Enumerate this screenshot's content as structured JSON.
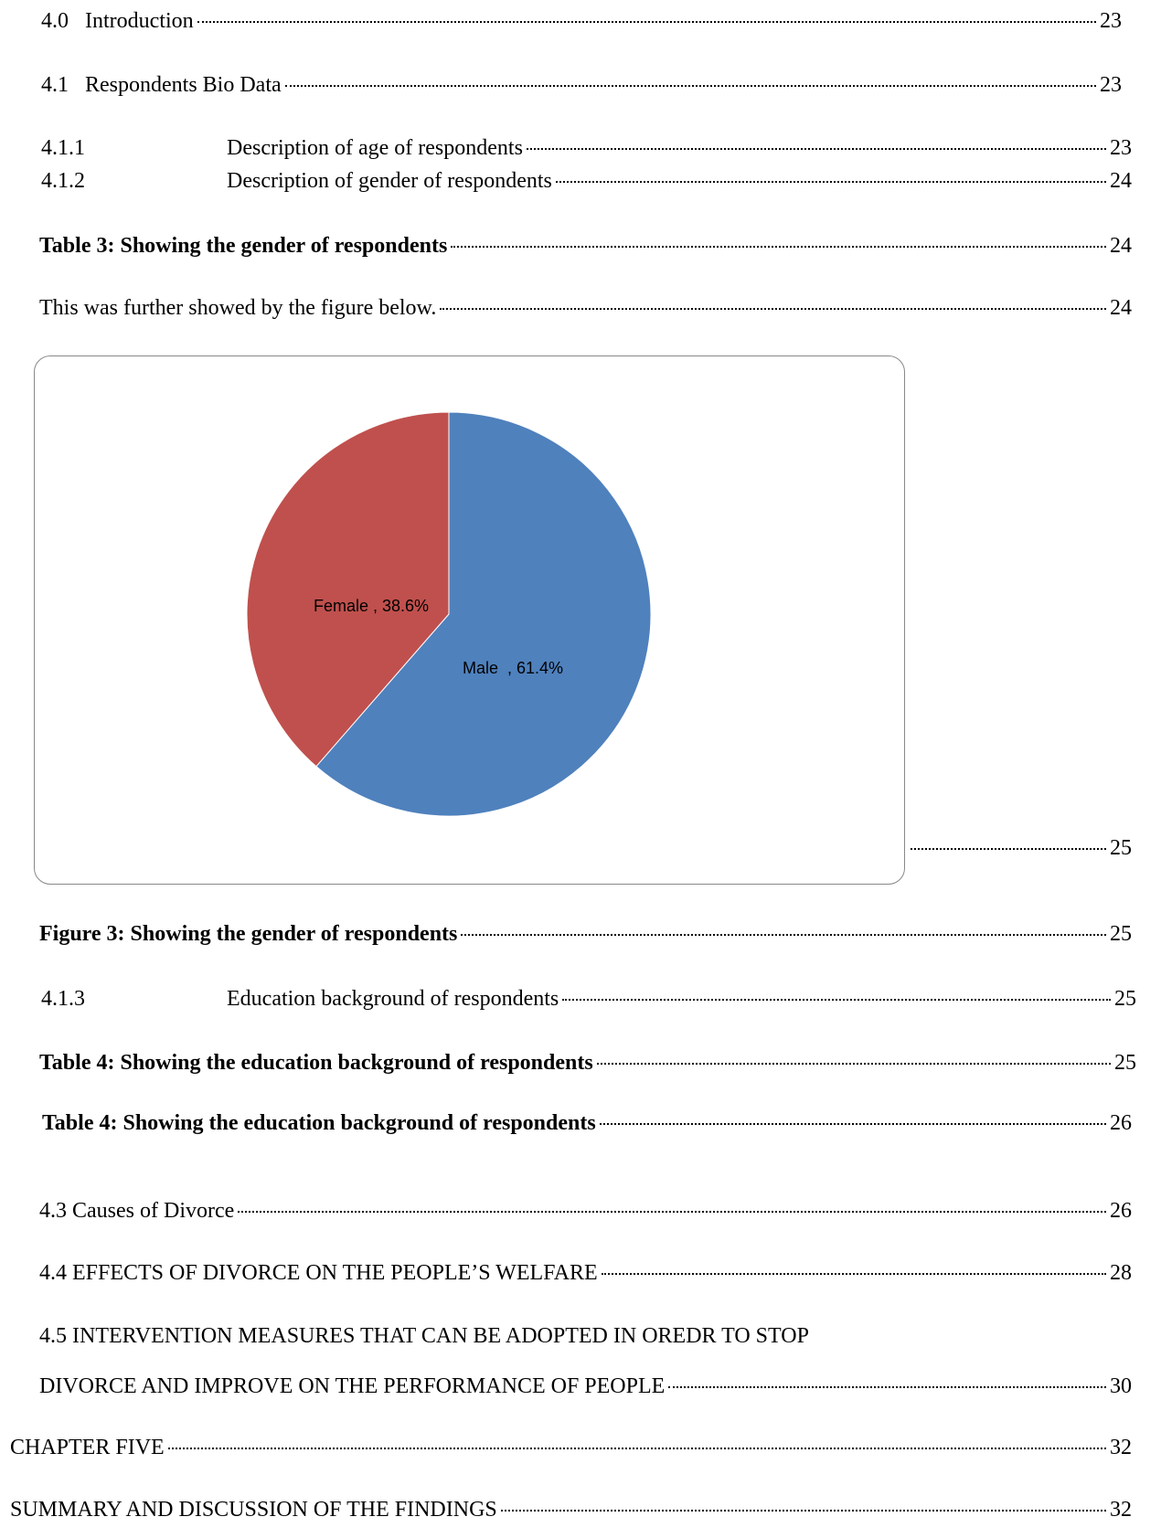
{
  "entries": [
    {
      "number": "4.0",
      "title": "Introduction",
      "page": "23"
    },
    {
      "number": "4.1",
      "title": "Respondents Bio Data",
      "page": "23"
    },
    {
      "number": "4.1.1",
      "title": "Description of age of respondents",
      "page": "23"
    },
    {
      "number": "4.1.2",
      "title": "Description of gender of respondents",
      "page": "24"
    },
    {
      "title": "Table 3: Showing the gender of respondents",
      "page": "24"
    },
    {
      "title": "This was further showed by the figure below.",
      "page": "24"
    },
    {
      "page": "25"
    },
    {
      "title": "Figure 3: Showing the gender of respondents",
      "page": "25"
    },
    {
      "number": "4.1.3",
      "title": "Education background of respondents",
      "page": "25"
    },
    {
      "title": "Table 4: Showing the education background of respondents",
      "page": "25"
    },
    {
      "title": "Table 4: Showing the education background of respondents",
      "page": "26"
    },
    {
      "title": "4.3 Causes of Divorce",
      "page": "26"
    },
    {
      "title": "4.4 EFFECTS OF DIVORCE ON THE PEOPLE’S WELFARE",
      "page": "28"
    },
    {
      "title_lines": [
        "4.5 INTERVENTION MEASURES THAT CAN BE ADOPTED IN OREDR TO STOP",
        "DIVORCE AND IMPROVE ON THE PERFORMANCE OF PEOPLE"
      ],
      "page": "30"
    },
    {
      "title": "CHAPTER FIVE",
      "page": "32"
    },
    {
      "title": "SUMMARY AND DISCUSSION OF THE FINDINGS",
      "page": "32"
    }
  ],
  "figure": {
    "chart_data": {
      "type": "pie",
      "values": [
        61.4,
        38.6
      ],
      "value_labels": [
        "Male  , 61.4%",
        "Female , 38.6%"
      ],
      "colors": [
        "#4f81bd",
        "#c0504d"
      ]
    }
  }
}
